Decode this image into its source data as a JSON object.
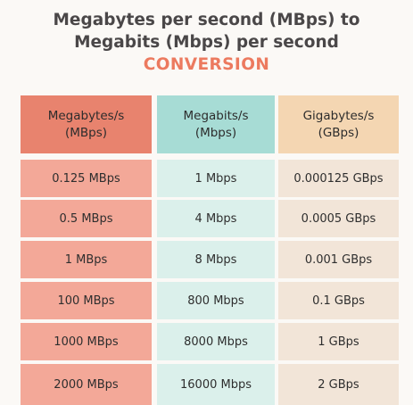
{
  "title": {
    "line1": "Megabytes per second (MBps) to",
    "line2": "Megabits (Mbps) per second",
    "line3": "CONVERSION"
  },
  "table": {
    "headers": [
      "Megabytes/s\n(MBps)",
      "Megabits/s\n(Mbps)",
      "Gigabytes/s\n(GBps)"
    ],
    "rows": [
      [
        "0.125 MBps",
        "1 Mbps",
        "0.000125 GBps"
      ],
      [
        "0.5 MBps",
        "4 Mbps",
        "0.0005 GBps"
      ],
      [
        "1 MBps",
        "8 Mbps",
        "0.001 GBps"
      ],
      [
        "100 MBps",
        "800 Mbps",
        "0.1 GBps"
      ],
      [
        "1000 MBps",
        "8000 Mbps",
        "1 GBps"
      ],
      [
        "2000 MBps",
        "16000 Mbps",
        "2 GBps"
      ]
    ]
  },
  "colors": {
    "background": "#fbf9f6",
    "title_text": "#4a4748",
    "accent": "#ec7a5f",
    "col1_header": "#e8836e",
    "col1_cell": "#f3a898",
    "col2_header": "#a7dcd5",
    "col2_cell": "#dbf0eb",
    "col3_header": "#f4d6b2",
    "col3_cell": "#f2e5d8"
  }
}
